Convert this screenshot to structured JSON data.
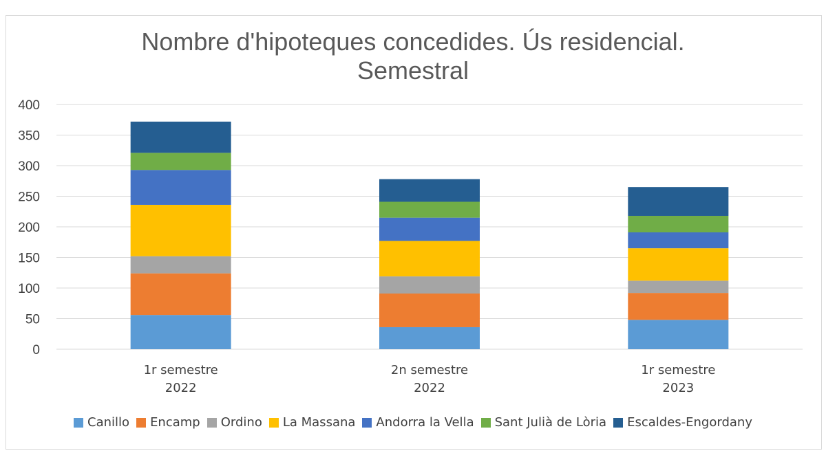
{
  "chart_data": {
    "type": "bar",
    "stacked": true,
    "title_line1": "Nombre d'hipoteques concedides. Ús residencial.",
    "title_line2": "Semestral",
    "categories": [
      [
        "1r semestre",
        "2022"
      ],
      [
        "2n semestre",
        "2022"
      ],
      [
        "1r semestre",
        "2023"
      ]
    ],
    "yticks": [
      0,
      50,
      100,
      150,
      200,
      250,
      300,
      350,
      400
    ],
    "ylim": [
      0,
      400
    ],
    "grid": true,
    "legend_position": "bottom",
    "series": [
      {
        "name": "Canillo",
        "color": "#5b9bd5",
        "values": [
          56,
          36,
          48
        ]
      },
      {
        "name": "Encamp",
        "color": "#ed7d31",
        "values": [
          68,
          55,
          44
        ]
      },
      {
        "name": "Ordino",
        "color": "#a5a5a5",
        "values": [
          28,
          28,
          20
        ]
      },
      {
        "name": "La Massana",
        "color": "#ffc000",
        "values": [
          84,
          58,
          53
        ]
      },
      {
        "name": "Andorra la Vella",
        "color": "#4472c4",
        "values": [
          57,
          38,
          26
        ]
      },
      {
        "name": "Sant Julià de Lòria",
        "color": "#70ad47",
        "values": [
          28,
          26,
          27
        ]
      },
      {
        "name": "Escaldes-Engordany",
        "color": "#255e91",
        "values": [
          51,
          37,
          47
        ]
      }
    ]
  }
}
